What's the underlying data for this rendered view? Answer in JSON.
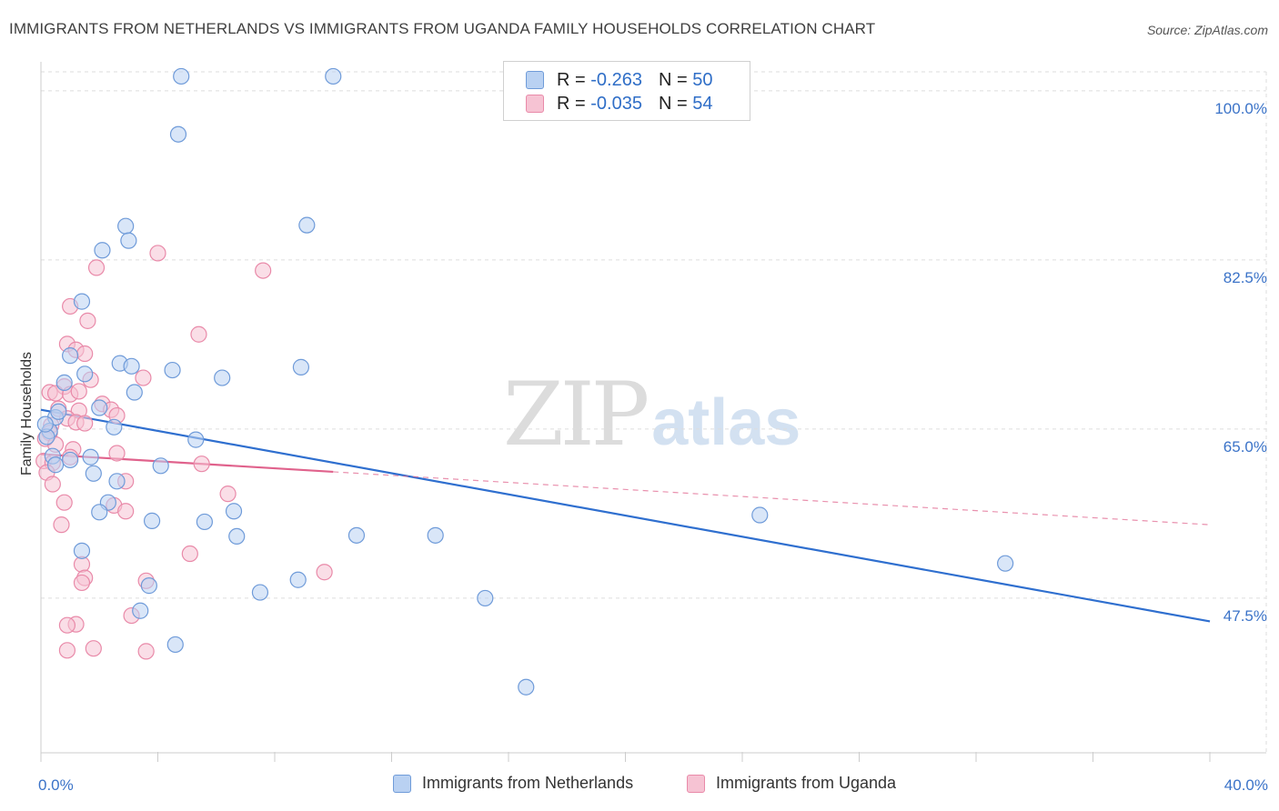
{
  "header": {
    "title": "IMMIGRANTS FROM NETHERLANDS VS IMMIGRANTS FROM UGANDA FAMILY HOUSEHOLDS CORRELATION CHART",
    "source": "Source: ZipAtlas.com"
  },
  "watermark": {
    "zip": "ZIP",
    "atlas": "atlas"
  },
  "legend_top": {
    "rows": [
      {
        "r_label": "R =",
        "r_value": "-0.263",
        "n_label": "N =",
        "n_value": "50"
      },
      {
        "r_label": "R =",
        "r_value": "-0.035",
        "n_label": "N =",
        "n_value": "54"
      }
    ]
  },
  "legend_bottom": {
    "items": [
      {
        "label": "Immigrants from Netherlands"
      },
      {
        "label": "Immigrants from Uganda"
      }
    ]
  },
  "colors": {
    "blue_fill": "#b9d1f2",
    "blue_stroke": "#6f9bd9",
    "blue_line": "#2f6fcf",
    "pink_fill": "#f6c3d3",
    "pink_stroke": "#e98aa9",
    "pink_line": "#e0628c",
    "grid": "#dddddd",
    "tick_label": "#3b73c8",
    "axis": "#cccccc"
  },
  "chart_data": {
    "type": "scatter",
    "title": "IMMIGRANTS FROM NETHERLANDS VS IMMIGRANTS FROM UGANDA FAMILY HOUSEHOLDS CORRELATION CHART",
    "xlabel": "",
    "ylabel": "Family Households",
    "xlim": [
      0,
      40
    ],
    "ylim": [
      31.5,
      103
    ],
    "x_tick_labels": [
      {
        "value": 0,
        "label": "0.0%"
      },
      {
        "value": 40,
        "label": "40.0%"
      }
    ],
    "x_minor_ticks": [
      0,
      4,
      8,
      12,
      16,
      20,
      24,
      28,
      32,
      36,
      40
    ],
    "y_ticks": [
      {
        "value": 47.5,
        "label": "47.5%"
      },
      {
        "value": 65.0,
        "label": "65.0%"
      },
      {
        "value": 82.5,
        "label": "82.5%"
      },
      {
        "value": 100.0,
        "label": "100.0%"
      }
    ],
    "grid": true,
    "legend": "bottom-center",
    "series": [
      {
        "name": "Immigrants from Netherlands",
        "R": -0.263,
        "N": 50,
        "trend": {
          "x0": 0,
          "y0": 67.0,
          "x1": 40,
          "y1": 45.1,
          "solid_until": 40
        },
        "points": [
          [
            4.8,
            101.5
          ],
          [
            10.0,
            101.5
          ],
          [
            4.7,
            95.5
          ],
          [
            9.1,
            86.1
          ],
          [
            2.9,
            86.0
          ],
          [
            3.0,
            84.5
          ],
          [
            2.1,
            83.5
          ],
          [
            1.4,
            78.2
          ],
          [
            1.0,
            72.6
          ],
          [
            1.5,
            70.7
          ],
          [
            2.7,
            71.8
          ],
          [
            3.1,
            71.5
          ],
          [
            4.5,
            71.1
          ],
          [
            6.2,
            70.3
          ],
          [
            8.9,
            71.4
          ],
          [
            0.8,
            69.8
          ],
          [
            3.2,
            68.8
          ],
          [
            0.5,
            66.2
          ],
          [
            0.6,
            66.8
          ],
          [
            2.0,
            67.2
          ],
          [
            2.5,
            65.2
          ],
          [
            0.3,
            64.8
          ],
          [
            0.2,
            64.2
          ],
          [
            5.3,
            63.9
          ],
          [
            0.4,
            62.2
          ],
          [
            0.5,
            61.3
          ],
          [
            1.0,
            61.8
          ],
          [
            1.7,
            62.1
          ],
          [
            4.1,
            61.2
          ],
          [
            1.8,
            60.4
          ],
          [
            2.6,
            59.6
          ],
          [
            2.3,
            57.4
          ],
          [
            2.0,
            56.4
          ],
          [
            3.8,
            55.5
          ],
          [
            5.6,
            55.4
          ],
          [
            6.6,
            56.5
          ],
          [
            6.7,
            53.9
          ],
          [
            10.8,
            54.0
          ],
          [
            13.5,
            54.0
          ],
          [
            24.6,
            56.1
          ],
          [
            33.0,
            51.1
          ],
          [
            1.4,
            52.4
          ],
          [
            3.7,
            48.8
          ],
          [
            8.8,
            49.4
          ],
          [
            7.5,
            48.1
          ],
          [
            15.2,
            47.5
          ],
          [
            3.4,
            46.2
          ],
          [
            4.6,
            42.7
          ],
          [
            16.6,
            38.3
          ],
          [
            0.15,
            65.5
          ]
        ]
      },
      {
        "name": "Immigrants from Uganda",
        "R": -0.035,
        "N": 54,
        "trend": {
          "x0": 0,
          "y0": 62.4,
          "x1": 40,
          "y1": 55.1,
          "solid_until": 10
        },
        "points": [
          [
            4.0,
            83.2
          ],
          [
            1.9,
            81.7
          ],
          [
            7.6,
            81.4
          ],
          [
            1.0,
            77.7
          ],
          [
            1.6,
            76.2
          ],
          [
            5.4,
            74.8
          ],
          [
            0.9,
            73.8
          ],
          [
            1.2,
            73.2
          ],
          [
            1.5,
            72.8
          ],
          [
            3.5,
            70.3
          ],
          [
            1.7,
            70.1
          ],
          [
            0.8,
            69.4
          ],
          [
            0.3,
            68.8
          ],
          [
            0.5,
            68.7
          ],
          [
            1.0,
            68.6
          ],
          [
            1.3,
            68.9
          ],
          [
            2.1,
            67.6
          ],
          [
            0.6,
            67.1
          ],
          [
            1.3,
            66.9
          ],
          [
            2.4,
            67.0
          ],
          [
            2.6,
            66.4
          ],
          [
            0.9,
            66.1
          ],
          [
            1.2,
            65.7
          ],
          [
            1.5,
            65.6
          ],
          [
            0.35,
            65.4
          ],
          [
            0.3,
            64.6
          ],
          [
            0.15,
            64.0
          ],
          [
            0.5,
            63.4
          ],
          [
            1.1,
            62.9
          ],
          [
            1.0,
            62.1
          ],
          [
            2.6,
            62.5
          ],
          [
            5.5,
            61.4
          ],
          [
            0.1,
            61.7
          ],
          [
            0.4,
            61.5
          ],
          [
            0.2,
            60.5
          ],
          [
            0.4,
            59.3
          ],
          [
            2.9,
            59.6
          ],
          [
            6.4,
            58.3
          ],
          [
            0.8,
            57.4
          ],
          [
            2.5,
            57.1
          ],
          [
            2.9,
            56.5
          ],
          [
            0.7,
            55.1
          ],
          [
            5.1,
            52.1
          ],
          [
            1.4,
            51.0
          ],
          [
            1.5,
            49.6
          ],
          [
            3.6,
            49.3
          ],
          [
            1.4,
            49.1
          ],
          [
            9.7,
            50.2
          ],
          [
            3.1,
            45.7
          ],
          [
            1.2,
            44.8
          ],
          [
            0.9,
            44.7
          ],
          [
            0.9,
            42.1
          ],
          [
            1.8,
            42.3
          ],
          [
            3.6,
            42.0
          ]
        ]
      }
    ]
  }
}
